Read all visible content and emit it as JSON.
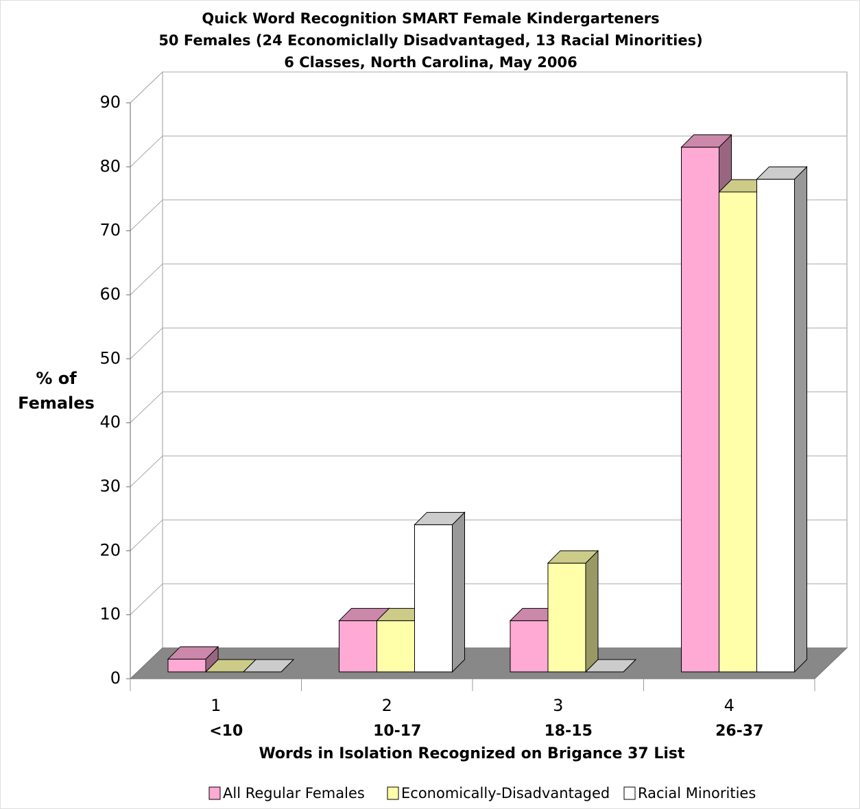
{
  "chart_data": {
    "type": "bar3d",
    "title": [
      "Quick Word Recognition SMART Female Kindergarteners",
      "50 Females (24 Economiclally Disadvantaged, 13 Racial Minorities)",
      "6 Classes, North Carolina, May 2006"
    ],
    "ylabel": [
      "% of",
      "Females"
    ],
    "xlabel": "Words in Isolation Recognized on Brigance 37 List",
    "categories": [
      "1",
      "2",
      "3",
      "4"
    ],
    "category_ranges": [
      "<10",
      "10-17",
      "18-15",
      "26-37"
    ],
    "series": [
      {
        "name": "All Regular Females",
        "color": "#ffaad4",
        "values": [
          2,
          8,
          8,
          82
        ]
      },
      {
        "name": "Economically-Disadvantaged",
        "color": "#ffffaa",
        "values": [
          0,
          8,
          17,
          75
        ]
      },
      {
        "name": "Racial Minorities",
        "color": "#ffffff",
        "values": [
          0,
          23,
          0,
          77
        ]
      }
    ],
    "ylim": [
      0,
      90
    ],
    "yticks": [
      0,
      10,
      20,
      30,
      40,
      50,
      60,
      70,
      80,
      90
    ],
    "grid": true,
    "legend": "bottom"
  }
}
